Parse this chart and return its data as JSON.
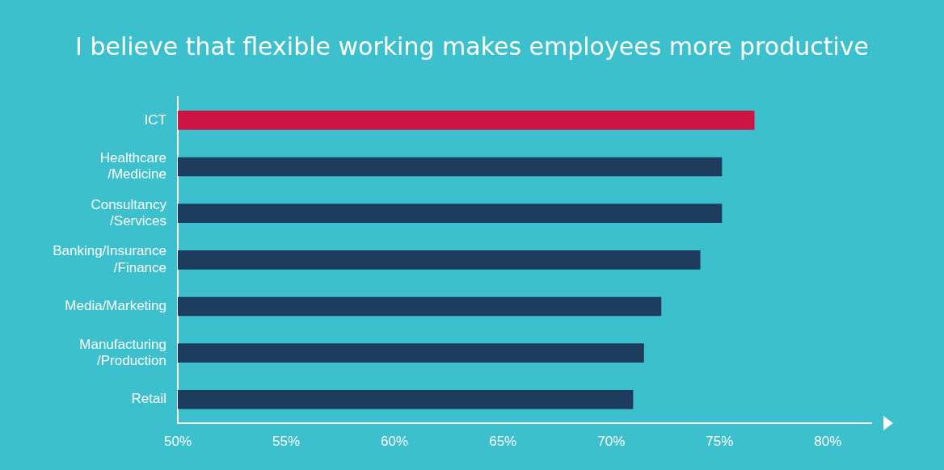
{
  "chart_data": {
    "type": "bar",
    "orientation": "horizontal",
    "title": "I believe that flexible working makes employees more productive",
    "categories": [
      "ICT",
      "Healthcare/Medicine",
      "Consultancy/Services",
      "Banking/Insurance/Finance",
      "Media/Marketing",
      "Manufacturing/Production",
      "Retail"
    ],
    "values": [
      76.6,
      75.1,
      75.1,
      74.1,
      72.3,
      71.5,
      71.0
    ],
    "colors": [
      "#cc1543",
      "#1e3d5e",
      "#1e3d5e",
      "#1e3d5e",
      "#1e3d5e",
      "#1e3d5e",
      "#1e3d5e"
    ],
    "xlim": [
      50,
      82
    ],
    "xticks": [
      {
        "value": 50,
        "label": "50%"
      },
      {
        "value": 55,
        "label": "55%"
      },
      {
        "value": 60,
        "label": "60%"
      },
      {
        "value": 65,
        "label": "65%"
      },
      {
        "value": 70,
        "label": "70%"
      },
      {
        "value": 75,
        "label": "75%"
      },
      {
        "value": 80,
        "label": "80%"
      }
    ],
    "grid": false,
    "legend": false
  }
}
